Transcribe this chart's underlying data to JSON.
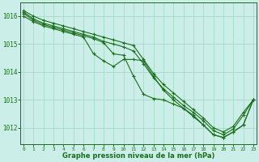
{
  "background_color": "#cceee8",
  "grid_color": "#aaddcc",
  "line_color": "#1a6e1a",
  "xlabel": "Graphe pression niveau de la mer (hPa)",
  "xlim": [
    -0.3,
    23.3
  ],
  "ylim": [
    1011.4,
    1016.5
  ],
  "yticks": [
    1012,
    1013,
    1014,
    1015,
    1016
  ],
  "xticks": [
    0,
    1,
    2,
    3,
    4,
    5,
    6,
    7,
    8,
    9,
    10,
    11,
    12,
    13,
    14,
    15,
    16,
    17,
    18,
    19,
    20,
    21,
    22,
    23
  ],
  "lines": [
    [
      1016.2,
      1016.0,
      1015.85,
      1015.75,
      1015.65,
      1015.55,
      1015.45,
      1015.35,
      1015.25,
      1015.15,
      1015.05,
      1014.95,
      1014.45,
      1013.95,
      1013.55,
      1013.25,
      1012.95,
      1012.65,
      1012.35,
      1012.0,
      1011.85,
      1012.05,
      1012.55,
      1013.0
    ],
    [
      1016.15,
      1015.9,
      1015.75,
      1015.65,
      1015.55,
      1015.45,
      1015.35,
      1015.25,
      1015.1,
      1015.0,
      1014.9,
      1014.75,
      1014.3,
      1013.8,
      1013.4,
      1013.1,
      1012.8,
      1012.55,
      1012.25,
      1011.9,
      1011.75,
      1011.95,
      1012.45,
      1013.0
    ],
    [
      1016.1,
      1015.85,
      1015.7,
      1015.6,
      1015.5,
      1015.4,
      1015.3,
      1015.2,
      1015.05,
      1014.65,
      1014.6,
      1013.85,
      1013.2,
      1013.05,
      1013.0,
      1012.85,
      1012.7,
      1012.45,
      1012.1,
      1011.75,
      1011.65,
      1011.85,
      1012.1,
      1013.0
    ],
    [
      1016.0,
      1015.8,
      1015.65,
      1015.55,
      1015.45,
      1015.35,
      1015.25,
      1014.65,
      1014.4,
      1014.2,
      1014.45,
      1014.45,
      1014.4,
      1013.85,
      1013.35,
      1013.0,
      1012.7,
      1012.4,
      1012.1,
      1011.75,
      1011.65,
      1011.85,
      1012.1,
      1013.0
    ]
  ]
}
